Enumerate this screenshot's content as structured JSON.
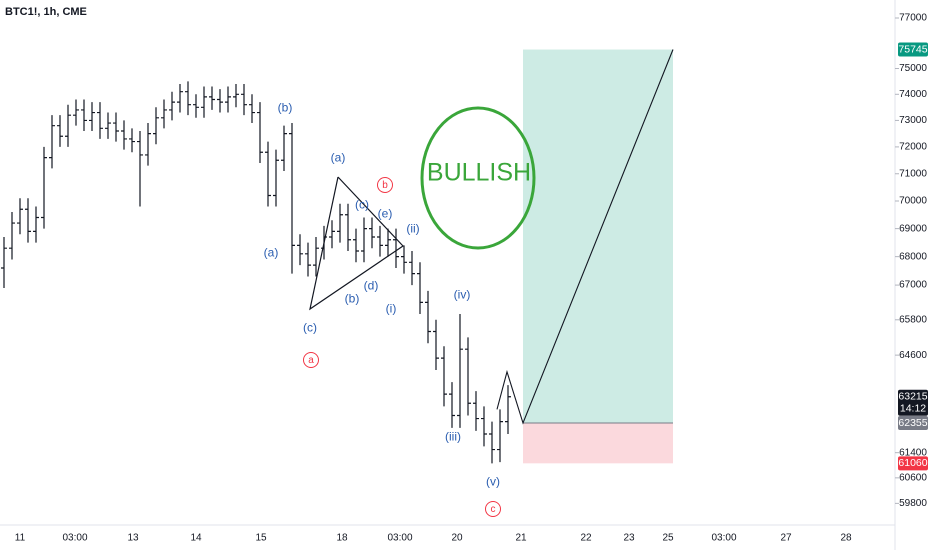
{
  "chart_data": {
    "type": "ohlc",
    "title": "BTC1!, 1h, CME",
    "log_scale": true,
    "color": "#131722",
    "ylim": [
      59130,
      77725
    ],
    "yticks": [
      77000,
      75000,
      74000,
      73000,
      72000,
      71000,
      70000,
      69000,
      68000,
      67000,
      65800,
      64600,
      61400,
      60600,
      59800
    ],
    "xticks": [
      "11",
      "03:00",
      "13",
      "14",
      "15",
      "18",
      "03:00",
      "20",
      "21",
      "22",
      "23",
      "25",
      "03:00",
      "27",
      "28"
    ],
    "open": [
      67600,
      68300,
      69200,
      69700,
      68900,
      69400,
      71600,
      72800,
      72400,
      73200,
      73400,
      73000,
      73300,
      72700,
      72900,
      72600,
      72300,
      72200,
      71700,
      72500,
      73100,
      73400,
      73700,
      74100,
      73600,
      73500,
      73900,
      73800,
      73700,
      73900,
      74000,
      73600,
      73300,
      71800,
      70200,
      71500,
      72500,
      68400,
      68100,
      67700,
      68300,
      68700,
      68900,
      69500,
      68600,
      68200,
      69000,
      68700,
      68400,
      68600,
      68000,
      67800,
      67400,
      66400,
      65400,
      64500,
      63300,
      62600,
      64800,
      63000,
      62500,
      62000,
      61500,
      62400
    ],
    "high": [
      68700,
      69600,
      70100,
      70100,
      69800,
      72000,
      73200,
      73200,
      73600,
      73800,
      73800,
      73700,
      73700,
      73300,
      73300,
      73000,
      72700,
      72600,
      72900,
      73500,
      73800,
      74100,
      74400,
      74500,
      74000,
      74300,
      74300,
      74200,
      74300,
      74400,
      74400,
      74000,
      73700,
      72200,
      71900,
      72800,
      72900,
      68800,
      68500,
      68700,
      69100,
      69300,
      69900,
      69900,
      69000,
      69400,
      69400,
      69100,
      69000,
      69000,
      68400,
      68200,
      67800,
      66800,
      65800,
      64900,
      63700,
      66000,
      65200,
      63400,
      62900,
      62400,
      62800,
      63600
    ],
    "low": [
      66900,
      67900,
      68800,
      68500,
      68500,
      69000,
      71200,
      72000,
      72000,
      72800,
      72600,
      72600,
      72300,
      72300,
      72200,
      71900,
      71800,
      69800,
      71300,
      72100,
      72700,
      73000,
      73300,
      73200,
      73100,
      73100,
      73400,
      73300,
      73300,
      73500,
      73200,
      72900,
      71400,
      69800,
      69800,
      71100,
      67400,
      67700,
      67300,
      67300,
      67900,
      68300,
      68500,
      68200,
      67800,
      67800,
      68300,
      68000,
      68000,
      67600,
      67400,
      67000,
      66000,
      65000,
      64100,
      62900,
      62200,
      62200,
      62600,
      62100,
      61600,
      61060,
      61100,
      62000
    ],
    "close": [
      68300,
      69200,
      69700,
      68900,
      69400,
      71600,
      72800,
      72400,
      73200,
      73400,
      73000,
      73300,
      72700,
      72900,
      72600,
      72300,
      72200,
      71700,
      72500,
      73100,
      73400,
      73700,
      74100,
      73600,
      73500,
      73900,
      73800,
      73700,
      73900,
      74000,
      73600,
      73300,
      71800,
      70200,
      71500,
      72500,
      68400,
      68100,
      67700,
      68300,
      68700,
      68900,
      69500,
      68600,
      68200,
      69000,
      68700,
      68400,
      68600,
      68000,
      67800,
      67400,
      66400,
      65400,
      64500,
      63300,
      62600,
      64800,
      63000,
      62500,
      62000,
      61500,
      62400,
      63215
    ],
    "projection": [
      62800,
      64040,
      62355,
      75745
    ],
    "price_tags": [
      {
        "value": 75745,
        "color": "#089981"
      },
      {
        "value": 63215,
        "color": "#131722",
        "countdown": "14:12"
      },
      {
        "value": 62355,
        "color": "#787b86"
      },
      {
        "value": 61060,
        "color": "#f23645"
      }
    ],
    "annotation": "BULLISH",
    "annotation_color": "#3aa63a",
    "target_color": "#cdebe4",
    "stop_color": "#fbd9dd",
    "wave_labels": [
      {
        "text": "(b)",
        "color": "#2a5db0"
      },
      {
        "text": "(a)",
        "color": "#2a5db0"
      },
      {
        "text": "(c)",
        "color": "#2a5db0"
      },
      {
        "text": "a",
        "color": "#f23645",
        "circled": true
      },
      {
        "text": "(a)",
        "color": "#2a5db0"
      },
      {
        "text": "(c)",
        "color": "#2a5db0"
      },
      {
        "text": "b",
        "color": "#f23645",
        "circled": true
      },
      {
        "text": "(e)",
        "color": "#2a5db0"
      },
      {
        "text": "(ii)",
        "color": "#2a5db0"
      },
      {
        "text": "(b)",
        "color": "#2a5db0"
      },
      {
        "text": "(d)",
        "color": "#2a5db0"
      },
      {
        "text": "(i)",
        "color": "#2a5db0"
      },
      {
        "text": "(iv)",
        "color": "#2a5db0"
      },
      {
        "text": "(iii)",
        "color": "#2a5db0"
      },
      {
        "text": "(v)",
        "color": "#2a5db0"
      },
      {
        "text": "c",
        "color": "#f23645",
        "circled": true
      }
    ]
  }
}
